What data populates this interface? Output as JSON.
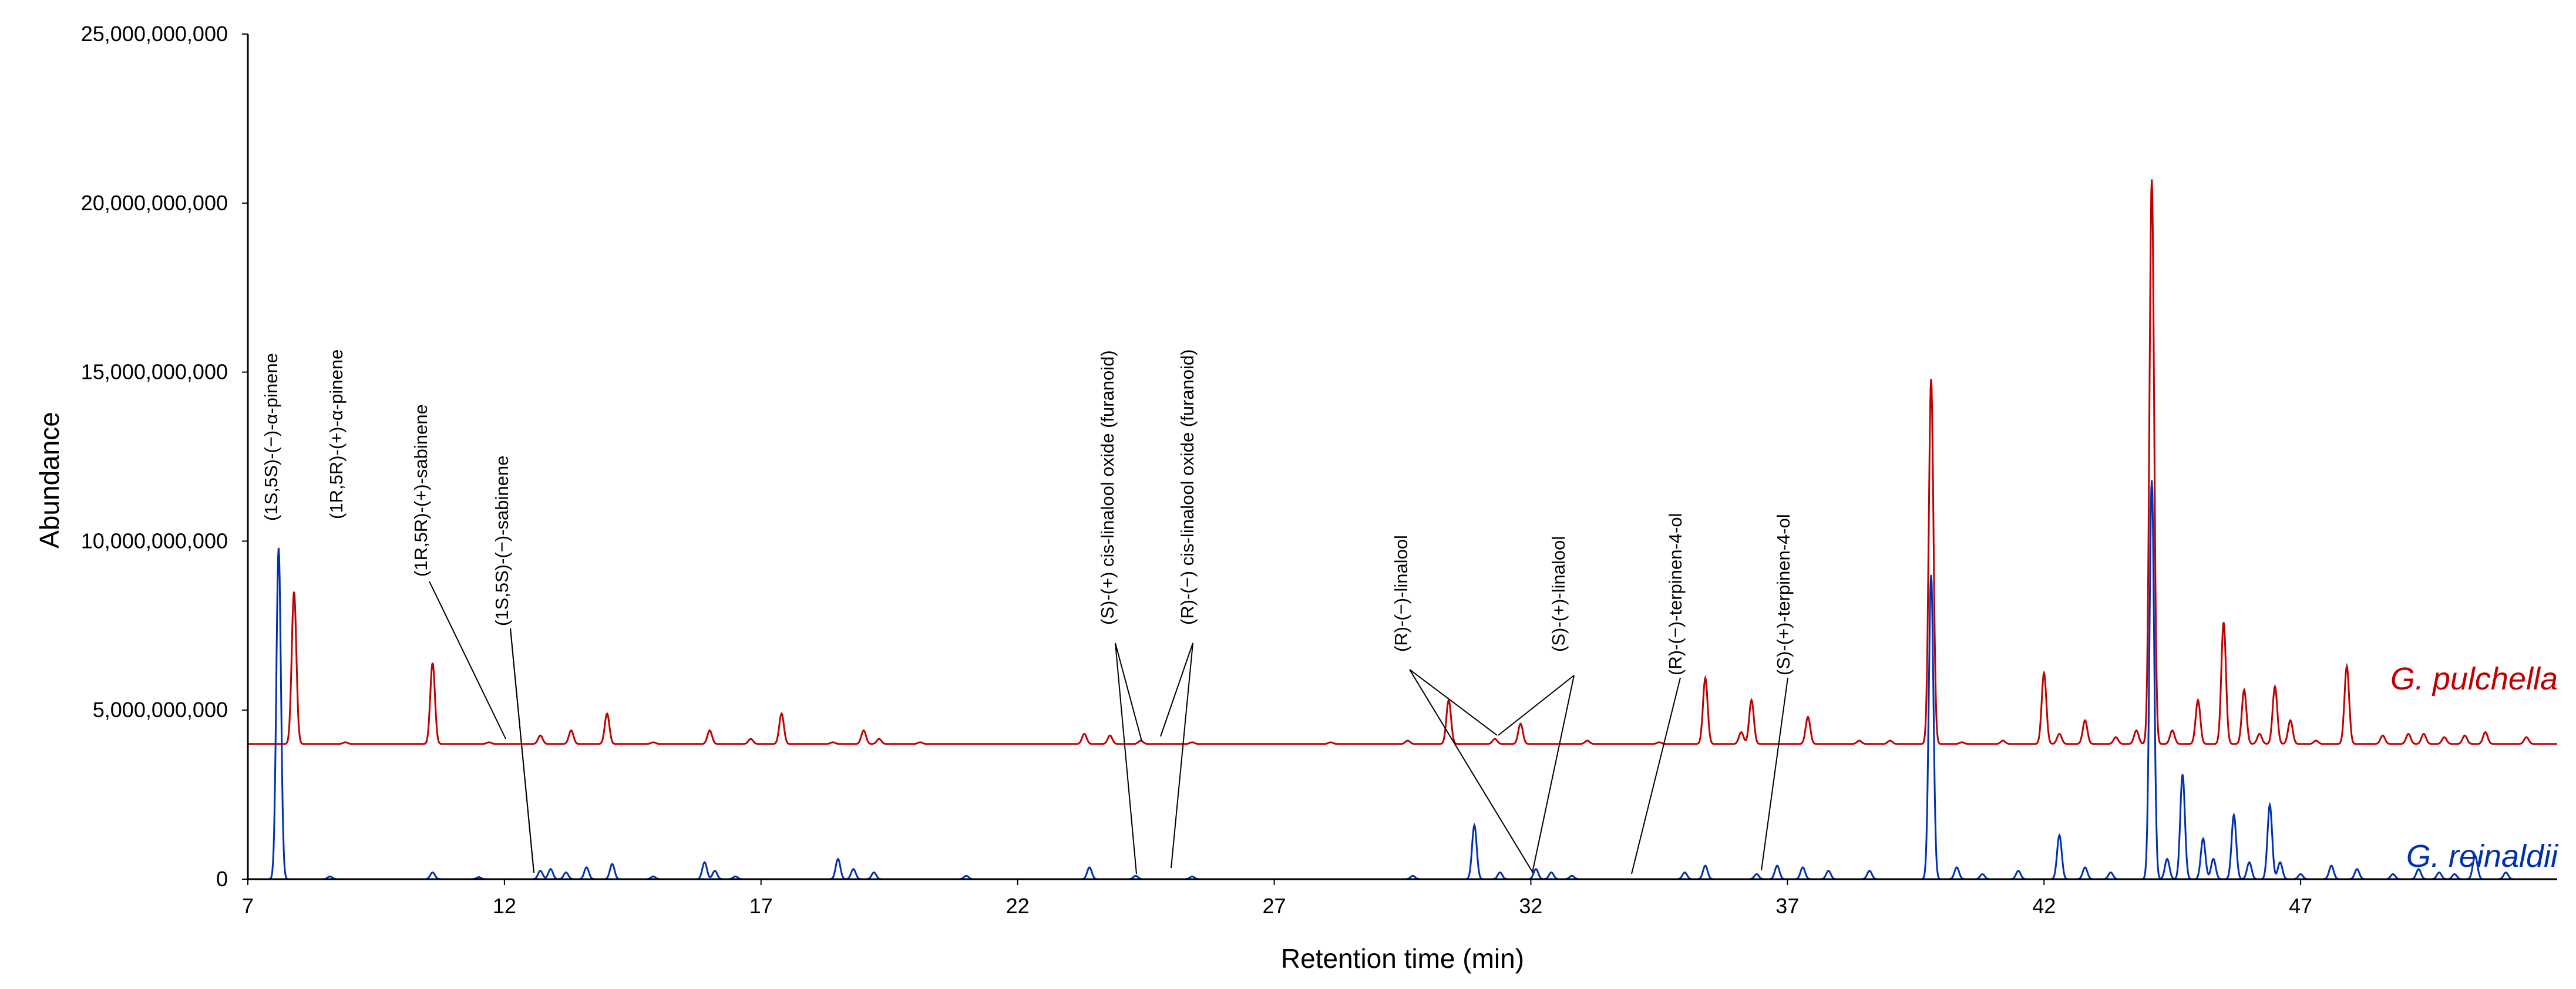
{
  "chart_data": {
    "type": "line",
    "xlabel": "Retention time (min)",
    "ylabel": "Abundance",
    "xlim": [
      7,
      52
    ],
    "ylim": [
      0,
      25000000000
    ],
    "x_ticks": [
      "7",
      "12",
      "17",
      "22",
      "27",
      "32",
      "37",
      "42",
      "47"
    ],
    "y_ticks": [
      "0",
      "5,000,000,000",
      "10,000,000,000",
      "15,000,000,000",
      "20,000,000,000",
      "25,000,000,000"
    ],
    "grid": false,
    "legend": "series labels at right",
    "series": [
      {
        "name": "G. pulchella",
        "color": "#c00000",
        "baseline": 4000000000,
        "peaks": [
          [
            7.9,
            8500000000
          ],
          [
            8.9,
            4050000000
          ],
          [
            10.6,
            6400000000
          ],
          [
            11.7,
            4050000000
          ],
          [
            12.7,
            4250000000
          ],
          [
            13.3,
            4400000000
          ],
          [
            14.0,
            4900000000
          ],
          [
            14.9,
            4050000000
          ],
          [
            16.0,
            4400000000
          ],
          [
            16.8,
            4150000000
          ],
          [
            17.4,
            4900000000
          ],
          [
            18.4,
            4050000000
          ],
          [
            19.0,
            4400000000
          ],
          [
            19.3,
            4150000000
          ],
          [
            20.1,
            4050000000
          ],
          [
            23.3,
            4300000000
          ],
          [
            23.8,
            4250000000
          ],
          [
            24.4,
            4100000000
          ],
          [
            25.4,
            4050000000
          ],
          [
            28.1,
            4050000000
          ],
          [
            29.6,
            4100000000
          ],
          [
            30.4,
            5300000000
          ],
          [
            31.3,
            4150000000
          ],
          [
            31.8,
            4600000000
          ],
          [
            33.1,
            4100000000
          ],
          [
            34.5,
            4050000000
          ],
          [
            35.4,
            5950000000
          ],
          [
            36.1,
            4350000000
          ],
          [
            36.3,
            5300000000
          ],
          [
            37.4,
            4800000000
          ],
          [
            38.4,
            4100000000
          ],
          [
            39.0,
            4100000000
          ],
          [
            39.8,
            14800000000
          ],
          [
            40.4,
            4050000000
          ],
          [
            41.2,
            4100000000
          ],
          [
            42.0,
            6100000000
          ],
          [
            42.3,
            4300000000
          ],
          [
            42.8,
            4700000000
          ],
          [
            43.4,
            4200000000
          ],
          [
            43.8,
            4400000000
          ],
          [
            44.1,
            20700000000
          ],
          [
            44.5,
            4400000000
          ],
          [
            45.0,
            5300000000
          ],
          [
            45.5,
            7600000000
          ],
          [
            45.9,
            5600000000
          ],
          [
            46.2,
            4300000000
          ],
          [
            46.5,
            5700000000
          ],
          [
            46.8,
            4700000000
          ],
          [
            47.3,
            4100000000
          ],
          [
            47.9,
            6300000000
          ],
          [
            48.6,
            4250000000
          ],
          [
            49.1,
            4300000000
          ],
          [
            49.4,
            4300000000
          ],
          [
            49.8,
            4200000000
          ],
          [
            50.2,
            4250000000
          ],
          [
            50.6,
            4350000000
          ],
          [
            51.4,
            4200000000
          ]
        ]
      },
      {
        "name": "G. reinaldii",
        "color": "#0030b0",
        "baseline": 0,
        "peaks": [
          [
            7.6,
            9800000000
          ],
          [
            8.6,
            80000000
          ],
          [
            10.6,
            200000000
          ],
          [
            11.5,
            60000000
          ],
          [
            12.7,
            250000000
          ],
          [
            12.9,
            300000000
          ],
          [
            13.2,
            200000000
          ],
          [
            13.6,
            350000000
          ],
          [
            14.1,
            450000000
          ],
          [
            14.9,
            80000000
          ],
          [
            15.9,
            500000000
          ],
          [
            16.1,
            250000000
          ],
          [
            16.5,
            80000000
          ],
          [
            18.5,
            600000000
          ],
          [
            18.8,
            300000000
          ],
          [
            19.2,
            200000000
          ],
          [
            21.0,
            100000000
          ],
          [
            23.4,
            350000000
          ],
          [
            24.3,
            100000000
          ],
          [
            25.4,
            80000000
          ],
          [
            29.7,
            100000000
          ],
          [
            30.9,
            1600000000
          ],
          [
            31.4,
            200000000
          ],
          [
            32.1,
            300000000
          ],
          [
            32.4,
            200000000
          ],
          [
            32.8,
            100000000
          ],
          [
            35.0,
            200000000
          ],
          [
            35.4,
            400000000
          ],
          [
            36.4,
            150000000
          ],
          [
            36.8,
            400000000
          ],
          [
            37.3,
            350000000
          ],
          [
            37.8,
            250000000
          ],
          [
            38.6,
            250000000
          ],
          [
            39.8,
            9000000000
          ],
          [
            40.3,
            350000000
          ],
          [
            40.8,
            150000000
          ],
          [
            41.5,
            250000000
          ],
          [
            42.3,
            1300000000
          ],
          [
            42.8,
            350000000
          ],
          [
            43.3,
            200000000
          ],
          [
            44.1,
            11800000000
          ],
          [
            44.4,
            600000000
          ],
          [
            44.7,
            3100000000
          ],
          [
            45.1,
            1200000000
          ],
          [
            45.3,
            600000000
          ],
          [
            45.7,
            1900000000
          ],
          [
            46.0,
            500000000
          ],
          [
            46.4,
            2200000000
          ],
          [
            46.6,
            500000000
          ],
          [
            47.0,
            150000000
          ],
          [
            47.6,
            400000000
          ],
          [
            48.1,
            300000000
          ],
          [
            48.8,
            150000000
          ],
          [
            49.3,
            300000000
          ],
          [
            49.7,
            200000000
          ],
          [
            50.0,
            150000000
          ],
          [
            50.4,
            700000000
          ],
          [
            51.0,
            200000000
          ]
        ]
      }
    ],
    "series_labels": [
      "G. pulchella",
      "G. reinaldii"
    ],
    "annotations": [
      {
        "text": "(1S,5S)-(−)-α-pinene",
        "x": 7.6
      },
      {
        "text": "(1R,5R)-(+)-α-pinene",
        "x": 7.9
      },
      {
        "text": "(1R,5R)-(+)-sabinene",
        "x": 12.0
      },
      {
        "text": "(1S,5S)-(−)-sabinene",
        "x": 12.7
      },
      {
        "text": "(S)-(+) cis-linalool oxide  (furanoid)",
        "x": 24.2
      },
      {
        "text": "(R)-(−) cis-linalool oxide  (furanoid)",
        "x": 24.9
      },
      {
        "text": "(R)-(−)-linalool",
        "x": 31.2
      },
      {
        "text": "(S)-(+)-linalool",
        "x": 31.9
      },
      {
        "text": "(R)-(−)-terpinen-4-ol",
        "x": 34.0
      },
      {
        "text": "(S)-(+)-terpinen-4-ol",
        "x": 36.2
      }
    ]
  }
}
